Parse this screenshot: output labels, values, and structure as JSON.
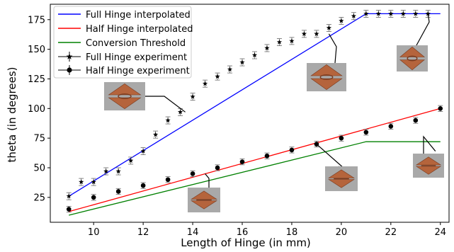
{
  "chart_data": {
    "type": "line",
    "xlabel": "Length of Hinge (in mm)",
    "ylabel": "theta (in degrees)",
    "xlim": [
      8.25,
      24.35
    ],
    "ylim": [
      4,
      188
    ],
    "xticks": [
      10,
      12,
      14,
      16,
      18,
      20,
      22,
      24
    ],
    "yticks": [
      25,
      50,
      75,
      100,
      125,
      150,
      175
    ],
    "grid": false,
    "legend_position": "top-left",
    "legend": [
      "Full Hinge interpolated",
      "Half Hinge interpolated",
      "Conversion Threshold",
      "Full Hinge experiment",
      "Half Hinge experiment"
    ],
    "series": [
      {
        "name": "Full Hinge interpolated",
        "kind": "line",
        "color": "#0000ff",
        "x": [
          9,
          21,
          24
        ],
        "y": [
          26,
          180,
          180
        ]
      },
      {
        "name": "Half Hinge interpolated",
        "kind": "line",
        "color": "#ff0000",
        "x": [
          9,
          24
        ],
        "y": [
          13,
          100
        ]
      },
      {
        "name": "Conversion Threshold",
        "kind": "line",
        "color": "#008000",
        "x": [
          9,
          21,
          24
        ],
        "y": [
          10,
          72,
          72
        ]
      },
      {
        "name": "Full Hinge experiment",
        "kind": "scatter",
        "marker": "star",
        "color": "#000000",
        "x": [
          9,
          9.5,
          10,
          10.5,
          11,
          11.5,
          12,
          12.5,
          13,
          13.5,
          14,
          14.5,
          15,
          15.5,
          16,
          16.5,
          17,
          17.5,
          18,
          18.5,
          19,
          19.5,
          20,
          20.5,
          21,
          21.5,
          22,
          22.5,
          23,
          23.5
        ],
        "y": [
          26,
          38,
          38,
          47,
          47,
          56,
          64,
          78,
          90,
          97,
          110,
          121,
          127,
          133,
          139,
          145,
          151,
          156,
          157,
          163,
          163,
          168,
          174,
          178,
          180,
          180,
          180,
          180,
          180,
          180
        ],
        "error": 3
      },
      {
        "name": "Half Hinge experiment",
        "kind": "scatter",
        "marker": "circle",
        "color": "#000000",
        "x": [
          9,
          10,
          11,
          12,
          13,
          14,
          15,
          16,
          17,
          18,
          19,
          20,
          21,
          22,
          23,
          24
        ],
        "y": [
          15,
          25,
          30,
          35,
          40,
          45,
          50,
          55,
          60,
          65,
          70,
          75,
          80,
          85,
          90,
          100
        ],
        "error": 2.5
      }
    ],
    "annotations": [
      {
        "label": "photo-full-hinge-13.7mm",
        "point": [
          13.7,
          97
        ],
        "type": "full"
      },
      {
        "label": "photo-full-hinge-19.5mm",
        "point": [
          19.5,
          163
        ],
        "type": "full"
      },
      {
        "label": "photo-full-hinge-23.5mm",
        "point": [
          23.5,
          180
        ],
        "type": "full"
      },
      {
        "label": "photo-half-hinge-14.5mm",
        "point": [
          14.5,
          45
        ],
        "type": "half"
      },
      {
        "label": "photo-half-hinge-19mm",
        "point": [
          19,
          70
        ],
        "type": "half"
      },
      {
        "label": "photo-half-hinge-23.8mm",
        "point": [
          23.8,
          64
        ],
        "type": "half"
      }
    ],
    "colors": {
      "photo_background": "#a9a9a9",
      "hinge_copper": "#b5643c",
      "hinge_dark": "#7a3a1e"
    }
  }
}
